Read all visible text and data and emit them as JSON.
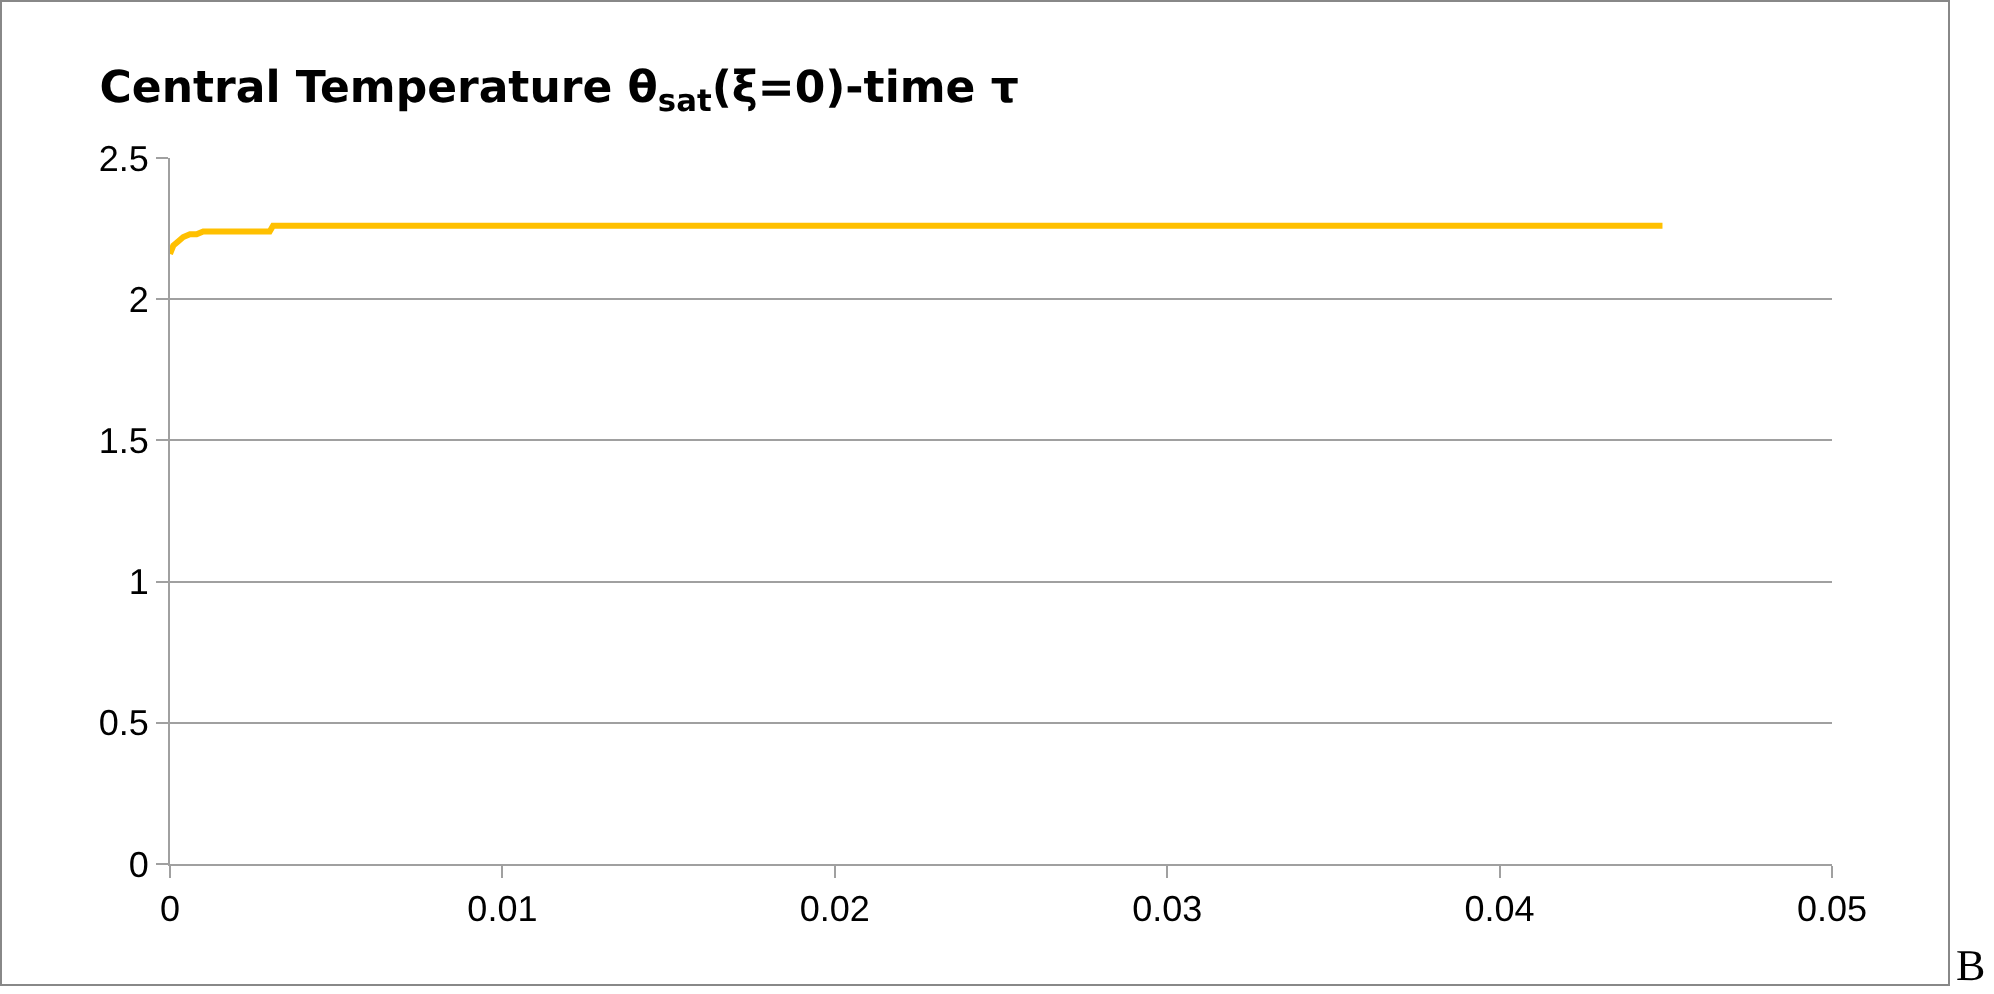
{
  "chart_data": {
    "type": "line",
    "title": "Central Temperature θ$_{sat}$(ξ=0)-time τ",
    "series": [
      {
        "color": "#ffc000",
        "x": [
          0,
          0.0001,
          0.0002,
          0.0004,
          0.0006,
          0.0008,
          0.001,
          0.002,
          0.003,
          0.0031,
          0.01,
          0.02,
          0.03,
          0.0449
        ],
        "values": [
          2.16,
          2.19,
          2.2,
          2.22,
          2.23,
          2.23,
          2.24,
          2.24,
          2.24,
          2.26,
          2.26,
          2.26,
          2.26,
          2.26
        ]
      }
    ],
    "xlim": [
      0,
      0.05
    ],
    "xticks": [
      0,
      0.01,
      0.02,
      0.03,
      0.04,
      0.05
    ],
    "ylim": [
      0,
      2.5
    ],
    "yticks": [
      0,
      0.5,
      1,
      1.5,
      2,
      2.5
    ],
    "grid": "y",
    "marker": "none",
    "line_style": "solid",
    "annotations": [
      "B"
    ]
  }
}
